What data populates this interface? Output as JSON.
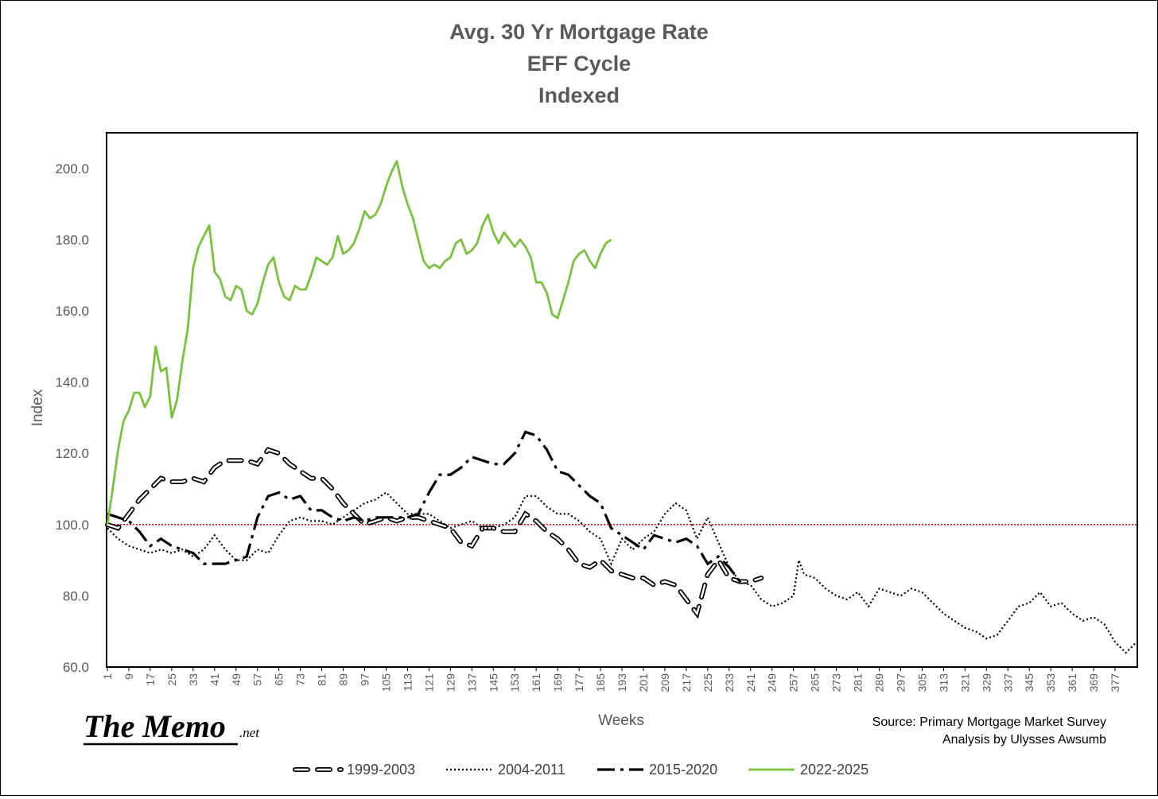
{
  "chart_data": {
    "type": "line",
    "title_lines": [
      "Avg. 30 Yr Mortgage Rate",
      "EFF Cycle",
      "Indexed"
    ],
    "xlabel": "Weeks",
    "ylabel": "Index",
    "ylim": [
      60,
      210
    ],
    "xlim": [
      1,
      385
    ],
    "y_ticks": [
      "60.0",
      "80.0",
      "100.0",
      "120.0",
      "140.0",
      "160.0",
      "180.0",
      "200.0"
    ],
    "x_ticks": [
      1,
      9,
      17,
      25,
      33,
      41,
      49,
      57,
      65,
      73,
      81,
      89,
      97,
      105,
      113,
      121,
      129,
      137,
      145,
      153,
      161,
      169,
      177,
      185,
      193,
      201,
      209,
      217,
      225,
      233,
      241,
      249,
      257,
      265,
      273,
      281,
      289,
      297,
      305,
      313,
      321,
      329,
      337,
      345,
      353,
      361,
      369,
      377
    ],
    "reference_line": {
      "y": 100,
      "color": "#ff0000",
      "style": "dotted"
    },
    "grid": false,
    "legend_position": "bottom",
    "series": [
      {
        "name": "1999-2003",
        "style": "double-dash",
        "color": "#000000",
        "points": [
          [
            1,
            100
          ],
          [
            5,
            99
          ],
          [
            9,
            103
          ],
          [
            13,
            107
          ],
          [
            17,
            110
          ],
          [
            21,
            113
          ],
          [
            25,
            112
          ],
          [
            29,
            112
          ],
          [
            33,
            113
          ],
          [
            37,
            112
          ],
          [
            41,
            116
          ],
          [
            45,
            118
          ],
          [
            49,
            118
          ],
          [
            53,
            118
          ],
          [
            57,
            117
          ],
          [
            61,
            121
          ],
          [
            65,
            120
          ],
          [
            69,
            117
          ],
          [
            73,
            115
          ],
          [
            77,
            113
          ],
          [
            81,
            113
          ],
          [
            85,
            110
          ],
          [
            89,
            106
          ],
          [
            93,
            103
          ],
          [
            97,
            100
          ],
          [
            101,
            101
          ],
          [
            105,
            102
          ],
          [
            109,
            101
          ],
          [
            113,
            102
          ],
          [
            117,
            102
          ],
          [
            121,
            101
          ],
          [
            125,
            100
          ],
          [
            129,
            99
          ],
          [
            133,
            95
          ],
          [
            137,
            94
          ],
          [
            141,
            99
          ],
          [
            145,
            99
          ],
          [
            149,
            98
          ],
          [
            153,
            98
          ],
          [
            157,
            103
          ],
          [
            161,
            101
          ],
          [
            165,
            98
          ],
          [
            169,
            96
          ],
          [
            173,
            93
          ],
          [
            177,
            89
          ],
          [
            181,
            88
          ],
          [
            185,
            90
          ],
          [
            189,
            87
          ],
          [
            193,
            86
          ],
          [
            197,
            85
          ],
          [
            201,
            85
          ],
          [
            205,
            83
          ],
          [
            209,
            84
          ],
          [
            213,
            83
          ],
          [
            217,
            79
          ],
          [
            221,
            75
          ],
          [
            225,
            86
          ],
          [
            229,
            90
          ],
          [
            233,
            85
          ],
          [
            237,
            84
          ],
          [
            241,
            84
          ],
          [
            245,
            85
          ]
        ]
      },
      {
        "name": "2004-2011",
        "style": "dotted",
        "color": "#000000",
        "points": [
          [
            1,
            99
          ],
          [
            5,
            96
          ],
          [
            9,
            94
          ],
          [
            13,
            93
          ],
          [
            17,
            92
          ],
          [
            21,
            93
          ],
          [
            25,
            92
          ],
          [
            29,
            93
          ],
          [
            33,
            91
          ],
          [
            37,
            93
          ],
          [
            41,
            97
          ],
          [
            45,
            93
          ],
          [
            49,
            90
          ],
          [
            53,
            90
          ],
          [
            57,
            93
          ],
          [
            61,
            92
          ],
          [
            65,
            97
          ],
          [
            69,
            101
          ],
          [
            73,
            102
          ],
          [
            77,
            101
          ],
          [
            81,
            101
          ],
          [
            85,
            100
          ],
          [
            89,
            102
          ],
          [
            93,
            104
          ],
          [
            97,
            106
          ],
          [
            101,
            107
          ],
          [
            105,
            109
          ],
          [
            109,
            106
          ],
          [
            113,
            103
          ],
          [
            117,
            103
          ],
          [
            121,
            103
          ],
          [
            125,
            101
          ],
          [
            129,
            99
          ],
          [
            133,
            100
          ],
          [
            137,
            101
          ],
          [
            141,
            99
          ],
          [
            145,
            99
          ],
          [
            149,
            100
          ],
          [
            153,
            102
          ],
          [
            157,
            108
          ],
          [
            161,
            108
          ],
          [
            165,
            105
          ],
          [
            169,
            103
          ],
          [
            173,
            103
          ],
          [
            177,
            101
          ],
          [
            181,
            98
          ],
          [
            185,
            96
          ],
          [
            189,
            89
          ],
          [
            193,
            96
          ],
          [
            197,
            93
          ],
          [
            201,
            96
          ],
          [
            205,
            98
          ],
          [
            209,
            103
          ],
          [
            213,
            106
          ],
          [
            217,
            104
          ],
          [
            221,
            96
          ],
          [
            225,
            102
          ],
          [
            229,
            95
          ],
          [
            233,
            88
          ],
          [
            237,
            84
          ],
          [
            241,
            83
          ],
          [
            245,
            79
          ],
          [
            249,
            77
          ],
          [
            253,
            78
          ],
          [
            257,
            80
          ],
          [
            259,
            90
          ],
          [
            261,
            86
          ],
          [
            265,
            85
          ],
          [
            269,
            82
          ],
          [
            273,
            80
          ],
          [
            277,
            79
          ],
          [
            281,
            81
          ],
          [
            285,
            77
          ],
          [
            289,
            82
          ],
          [
            293,
            81
          ],
          [
            297,
            80
          ],
          [
            301,
            82
          ],
          [
            305,
            81
          ],
          [
            309,
            78
          ],
          [
            313,
            75
          ],
          [
            317,
            73
          ],
          [
            321,
            71
          ],
          [
            325,
            70
          ],
          [
            329,
            68
          ],
          [
            333,
            69
          ],
          [
            337,
            73
          ],
          [
            341,
            77
          ],
          [
            345,
            78
          ],
          [
            349,
            81
          ],
          [
            353,
            77
          ],
          [
            357,
            78
          ],
          [
            361,
            75
          ],
          [
            365,
            73
          ],
          [
            369,
            74
          ],
          [
            373,
            72
          ],
          [
            377,
            67
          ],
          [
            381,
            64
          ],
          [
            385,
            67
          ]
        ]
      },
      {
        "name": "2015-2020",
        "style": "dash-dot",
        "color": "#000000",
        "points": [
          [
            1,
            103
          ],
          [
            5,
            102
          ],
          [
            9,
            101
          ],
          [
            13,
            98
          ],
          [
            17,
            94
          ],
          [
            21,
            96
          ],
          [
            25,
            94
          ],
          [
            29,
            93
          ],
          [
            33,
            92
          ],
          [
            37,
            89
          ],
          [
            41,
            89
          ],
          [
            45,
            89
          ],
          [
            49,
            90
          ],
          [
            53,
            91
          ],
          [
            57,
            102
          ],
          [
            61,
            108
          ],
          [
            65,
            109
          ],
          [
            69,
            107
          ],
          [
            73,
            108
          ],
          [
            77,
            104
          ],
          [
            81,
            104
          ],
          [
            85,
            102
          ],
          [
            89,
            101
          ],
          [
            93,
            102
          ],
          [
            97,
            101
          ],
          [
            101,
            102
          ],
          [
            105,
            102
          ],
          [
            109,
            102
          ],
          [
            113,
            102
          ],
          [
            117,
            103
          ],
          [
            121,
            109
          ],
          [
            125,
            114
          ],
          [
            129,
            114
          ],
          [
            133,
            116
          ],
          [
            137,
            119
          ],
          [
            141,
            118
          ],
          [
            145,
            117
          ],
          [
            149,
            117
          ],
          [
            153,
            120
          ],
          [
            157,
            126
          ],
          [
            161,
            125
          ],
          [
            165,
            121
          ],
          [
            169,
            115
          ],
          [
            173,
            114
          ],
          [
            177,
            111
          ],
          [
            181,
            108
          ],
          [
            185,
            106
          ],
          [
            189,
            99
          ],
          [
            193,
            97
          ],
          [
            197,
            95
          ],
          [
            201,
            93
          ],
          [
            205,
            97
          ],
          [
            209,
            96
          ],
          [
            213,
            95
          ],
          [
            217,
            96
          ],
          [
            221,
            94
          ],
          [
            225,
            89
          ],
          [
            229,
            91
          ],
          [
            233,
            88
          ],
          [
            237,
            84
          ]
        ]
      },
      {
        "name": "2022-2025",
        "style": "solid",
        "color": "#7ac142",
        "points": [
          [
            1,
            100
          ],
          [
            3,
            110
          ],
          [
            5,
            121
          ],
          [
            7,
            129
          ],
          [
            9,
            132
          ],
          [
            11,
            137
          ],
          [
            13,
            137
          ],
          [
            15,
            133
          ],
          [
            17,
            136
          ],
          [
            19,
            150
          ],
          [
            21,
            143
          ],
          [
            23,
            144
          ],
          [
            25,
            130
          ],
          [
            27,
            135
          ],
          [
            29,
            146
          ],
          [
            31,
            155
          ],
          [
            33,
            172
          ],
          [
            35,
            178
          ],
          [
            37,
            181
          ],
          [
            39,
            184
          ],
          [
            41,
            171
          ],
          [
            43,
            169
          ],
          [
            45,
            164
          ],
          [
            47,
            163
          ],
          [
            49,
            167
          ],
          [
            51,
            166
          ],
          [
            53,
            160
          ],
          [
            55,
            159
          ],
          [
            57,
            162
          ],
          [
            59,
            168
          ],
          [
            61,
            173
          ],
          [
            63,
            175
          ],
          [
            65,
            168
          ],
          [
            67,
            164
          ],
          [
            69,
            163
          ],
          [
            71,
            167
          ],
          [
            73,
            166
          ],
          [
            75,
            166
          ],
          [
            77,
            170
          ],
          [
            79,
            175
          ],
          [
            81,
            174
          ],
          [
            83,
            173
          ],
          [
            85,
            175
          ],
          [
            87,
            181
          ],
          [
            89,
            176
          ],
          [
            91,
            177
          ],
          [
            93,
            179
          ],
          [
            95,
            183
          ],
          [
            97,
            188
          ],
          [
            99,
            186
          ],
          [
            101,
            187
          ],
          [
            103,
            190
          ],
          [
            105,
            195
          ],
          [
            107,
            199
          ],
          [
            109,
            202
          ],
          [
            111,
            195
          ],
          [
            113,
            190
          ],
          [
            115,
            186
          ],
          [
            117,
            180
          ],
          [
            119,
            174
          ],
          [
            121,
            172
          ],
          [
            123,
            173
          ],
          [
            125,
            172
          ],
          [
            127,
            174
          ],
          [
            129,
            175
          ],
          [
            131,
            179
          ],
          [
            133,
            180
          ],
          [
            135,
            176
          ],
          [
            137,
            177
          ],
          [
            139,
            179
          ],
          [
            141,
            184
          ],
          [
            143,
            187
          ],
          [
            145,
            182
          ],
          [
            147,
            179
          ],
          [
            149,
            182
          ],
          [
            151,
            180
          ],
          [
            153,
            178
          ],
          [
            155,
            180
          ],
          [
            157,
            178
          ],
          [
            159,
            175
          ],
          [
            161,
            168
          ],
          [
            163,
            168
          ],
          [
            165,
            165
          ],
          [
            167,
            159
          ],
          [
            169,
            158
          ],
          [
            171,
            163
          ],
          [
            173,
            168
          ],
          [
            175,
            174
          ],
          [
            177,
            176
          ],
          [
            179,
            177
          ],
          [
            181,
            174
          ],
          [
            183,
            172
          ],
          [
            185,
            176
          ],
          [
            187,
            179
          ],
          [
            189,
            180
          ]
        ]
      }
    ],
    "source_lines": [
      "Source: Primary Mortgage Market Survey",
      "Analysis by Ulysses Awsumb"
    ]
  },
  "logo": {
    "main": "The Memo",
    "suffix": ".net"
  }
}
